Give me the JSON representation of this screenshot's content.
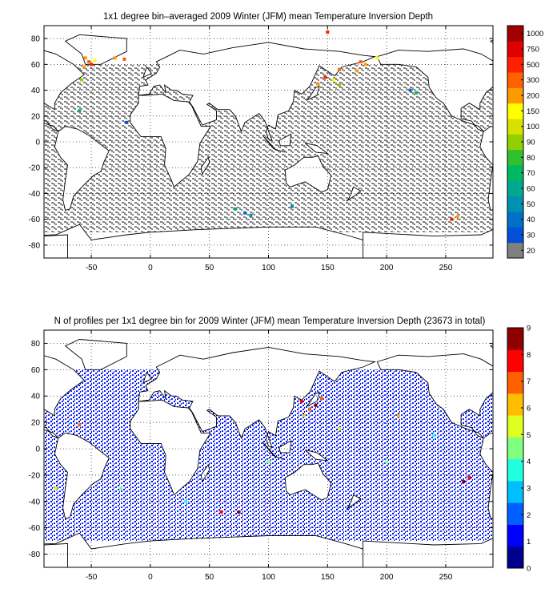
{
  "chart_data": [
    {
      "type": "heatmap",
      "title": "1x1 degree bin–averaged 2009 Winter (JFM) mean Temperature Inversion Depth",
      "xlabel": "",
      "ylabel": "",
      "xlim": [
        -90,
        290
      ],
      "ylim": [
        -90,
        90
      ],
      "x_ticks": [
        -50,
        0,
        50,
        100,
        150,
        200,
        250
      ],
      "y_ticks": [
        -80,
        -60,
        -40,
        -20,
        0,
        20,
        40,
        60,
        80
      ],
      "grid": true,
      "colorbar": {
        "labels": [
          "20",
          "30",
          "40",
          "50",
          "60",
          "70",
          "80",
          "90",
          "100",
          "150",
          "200",
          "300",
          "500",
          "750",
          "1000"
        ],
        "colors": [
          "#808080",
          "#0050d8",
          "#0070c8",
          "#0090b0",
          "#00a890",
          "#00b860",
          "#30c030",
          "#90d000",
          "#d8e000",
          "#ffff00",
          "#ff9900",
          "#ff6000",
          "#ff2000",
          "#e00000",
          "#a00000"
        ]
      },
      "land_color": "#ffffff",
      "dominant_color": "#808080",
      "points": [
        [
          -52,
          62,
          "#ff6000"
        ],
        [
          -55,
          65,
          "#ff9900"
        ],
        [
          -50,
          60,
          "#ff2000"
        ],
        [
          -56,
          58,
          "#ff9900"
        ],
        [
          -47,
          63,
          "#ffff00"
        ],
        [
          -58,
          48,
          "#90d000"
        ],
        [
          -30,
          65,
          "#ff9900"
        ],
        [
          -22,
          64,
          "#ff6000"
        ],
        [
          178,
          62,
          "#ff6000"
        ],
        [
          182,
          60,
          "#ff9900"
        ],
        [
          175,
          55,
          "#ff9900"
        ],
        [
          160,
          56,
          "#ff6000"
        ],
        [
          148,
          50,
          "#ff2000"
        ],
        [
          142,
          45,
          "#ff9900"
        ],
        [
          150,
          85,
          "#ff2000"
        ],
        [
          192,
          65,
          "#ffff00"
        ],
        [
          155,
          48,
          "#ffff00"
        ],
        [
          160,
          44,
          "#90d000"
        ],
        [
          220,
          40,
          "#0070c8"
        ],
        [
          225,
          38,
          "#00b860"
        ],
        [
          80,
          -55,
          "#0070c8"
        ],
        [
          85,
          -57,
          "#0090b0"
        ],
        [
          72,
          -52,
          "#00a890"
        ],
        [
          -20,
          15,
          "#0050d8"
        ],
        [
          -60,
          24,
          "#00a890"
        ],
        [
          255,
          -60,
          "#ff2000"
        ],
        [
          260,
          -58,
          "#ff9900"
        ],
        [
          120,
          -50,
          "#0090b0"
        ]
      ]
    },
    {
      "type": "heatmap",
      "title": "N of profiles per 1x1 degree bin for 2009 Winter (JFM) mean Temperature Inversion Depth  (23673 in total)",
      "xlabel": "",
      "ylabel": "",
      "xlim": [
        -90,
        290
      ],
      "ylim": [
        -90,
        90
      ],
      "x_ticks": [
        -50,
        0,
        50,
        100,
        150,
        200,
        250
      ],
      "y_ticks": [
        -80,
        -60,
        -40,
        -20,
        0,
        20,
        40,
        60,
        80
      ],
      "grid": true,
      "total_profiles": 23673,
      "colorbar": {
        "labels": [
          "0",
          "1",
          "2",
          "3",
          "4",
          "5",
          "6",
          "7",
          "8",
          "9"
        ],
        "colors": [
          "#00008f",
          "#0000ff",
          "#0060ff",
          "#00bfff",
          "#20ffdf",
          "#80ff80",
          "#dfff20",
          "#ffbf00",
          "#ff6000",
          "#ff0000",
          "#8f0000"
        ]
      },
      "dominant_color": "#0000ff",
      "points": [
        [
          128,
          36,
          "#ff0000"
        ],
        [
          135,
          30,
          "#ff6000"
        ],
        [
          140,
          33,
          "#8f0000"
        ],
        [
          130,
          25,
          "#ffbf00"
        ],
        [
          145,
          38,
          "#ff6000"
        ],
        [
          60,
          -48,
          "#ff0000"
        ],
        [
          75,
          -48,
          "#8f0000"
        ],
        [
          270,
          -22,
          "#ff0000"
        ],
        [
          265,
          -25,
          "#8f0000"
        ],
        [
          -60,
          18,
          "#ff6000"
        ],
        [
          -80,
          -30,
          "#dfff20"
        ],
        [
          100,
          -10,
          "#80ff80"
        ],
        [
          160,
          15,
          "#dfff20"
        ],
        [
          200,
          -10,
          "#80ff80"
        ],
        [
          210,
          25,
          "#ffbf00"
        ],
        [
          -25,
          -30,
          "#80ff80"
        ],
        [
          30,
          -40,
          "#20ffdf"
        ],
        [
          240,
          10,
          "#20ffdf"
        ]
      ]
    }
  ]
}
